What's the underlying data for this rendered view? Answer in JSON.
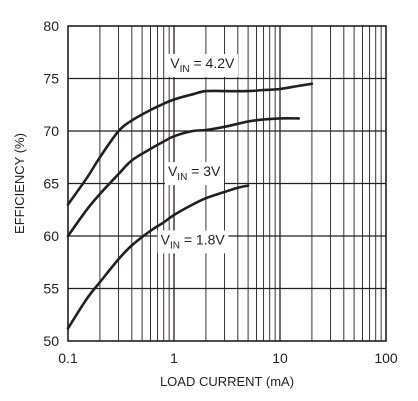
{
  "chart_data": {
    "type": "line",
    "xlabel": "LOAD CURRENT (mA)",
    "ylabel": "EFFICIENCY (%)",
    "x_scale": "log",
    "xlim": [
      0.1,
      100
    ],
    "ylim": [
      50,
      80
    ],
    "grid": true,
    "x_ticks": [
      "0.1",
      "1",
      "10",
      "100"
    ],
    "y_ticks": [
      "50",
      "55",
      "60",
      "65",
      "70",
      "75",
      "80"
    ],
    "series": [
      {
        "name_main": "V",
        "name_sub": "IN",
        "name_rest": " = 4.2V",
        "color": "#231f20",
        "x": [
          0.1,
          0.15,
          0.2,
          0.3,
          0.4,
          0.6,
          0.8,
          1,
          1.5,
          2,
          3,
          5,
          7,
          10,
          15,
          20
        ],
        "y": [
          63.0,
          65.5,
          67.5,
          70.0,
          71.0,
          72.0,
          72.6,
          73.0,
          73.5,
          73.8,
          73.8,
          73.8,
          73.9,
          74.0,
          74.3,
          74.5
        ]
      },
      {
        "name_main": "V",
        "name_sub": "IN",
        "name_rest": " = 3V",
        "color": "#231f20",
        "x": [
          0.1,
          0.15,
          0.2,
          0.3,
          0.4,
          0.6,
          0.8,
          1,
          1.5,
          2,
          3,
          5,
          7,
          10,
          15
        ],
        "y": [
          60.0,
          62.5,
          64.0,
          65.9,
          67.2,
          68.3,
          69.0,
          69.5,
          70.0,
          70.1,
          70.4,
          70.9,
          71.1,
          71.2,
          71.2
        ]
      },
      {
        "name_main": "V",
        "name_sub": "IN",
        "name_rest": " = 1.8V",
        "color": "#231f20",
        "x": [
          0.1,
          0.15,
          0.2,
          0.3,
          0.4,
          0.6,
          0.8,
          1,
          1.5,
          2,
          3,
          4,
          5
        ],
        "y": [
          51.2,
          54.0,
          55.6,
          57.8,
          59.1,
          60.5,
          61.3,
          62.0,
          63.0,
          63.6,
          64.2,
          64.6,
          64.8
        ]
      }
    ]
  }
}
